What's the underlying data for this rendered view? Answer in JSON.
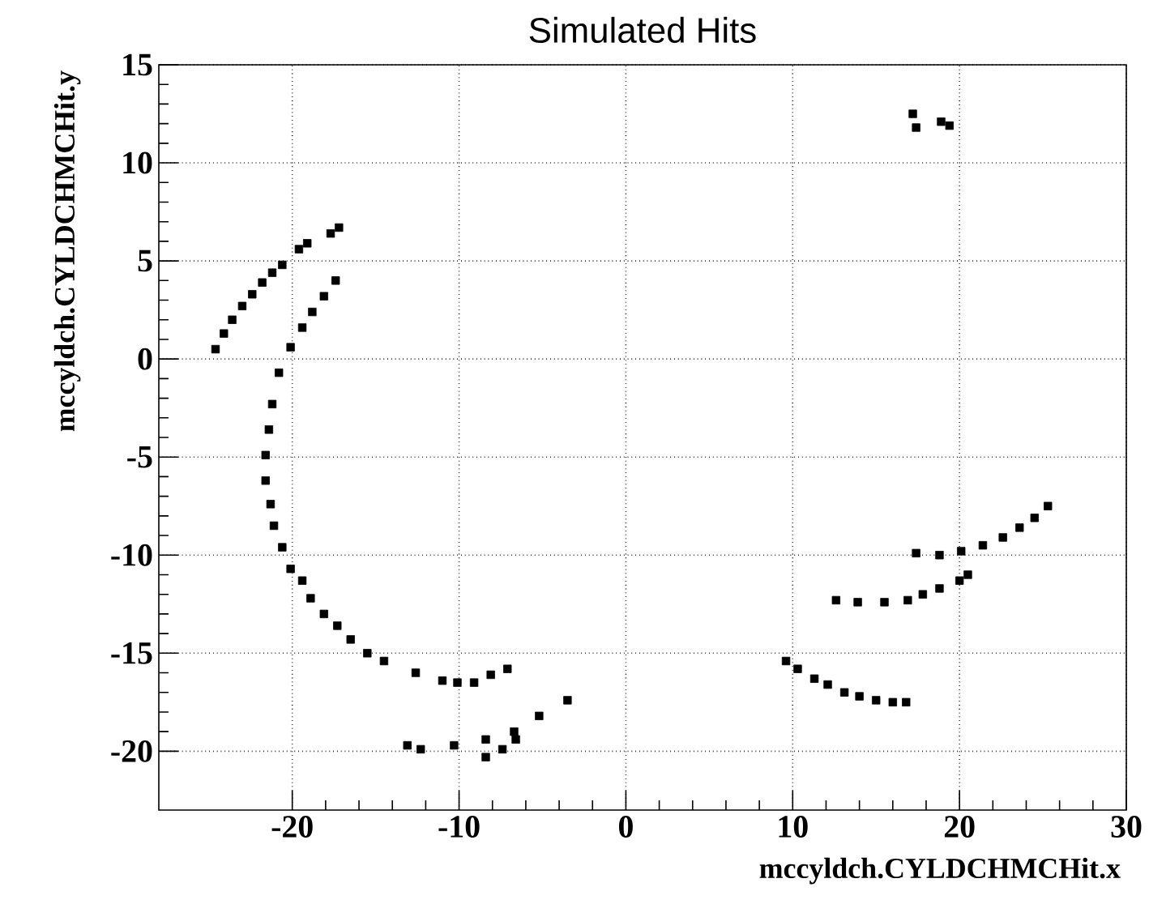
{
  "chart_data": {
    "type": "scatter",
    "title": "Simulated Hits",
    "xlabel": "mccyldch.CYLDCHMCHit.x",
    "ylabel": "mccyldch.CYLDCHMCHit.y",
    "xlim": [
      -28,
      30
    ],
    "ylim": [
      -23,
      15
    ],
    "xticks": [
      -20,
      -10,
      0,
      10,
      20,
      30
    ],
    "yticks": [
      -20,
      -15,
      -10,
      -5,
      0,
      5,
      10,
      15
    ],
    "grid": true,
    "marker": "square",
    "series": [
      {
        "color": "#000000",
        "x": [
          -24.6,
          -24.1,
          -23.6,
          -23.0,
          -22.4,
          -21.8,
          -21.2,
          -20.6,
          -19.6,
          -19.1,
          -17.7,
          -17.2,
          -17.4,
          -18.1,
          -18.8,
          -19.4,
          -20.1,
          -20.8,
          -21.2,
          -21.4,
          -21.6,
          -21.6,
          -21.3,
          -21.1,
          -20.6,
          -20.1,
          -19.4,
          -18.9,
          -18.1,
          -17.3,
          -16.5,
          -15.5,
          -14.5,
          -12.6,
          -11.0,
          -10.1,
          -9.1,
          -8.1,
          -7.1,
          -13.1,
          -12.3,
          -10.3,
          -8.4,
          -6.7,
          -5.2,
          -3.5,
          -8.4,
          -7.4,
          -6.6,
          9.6,
          10.3,
          11.3,
          12.1,
          13.1,
          14.0,
          15.0,
          16.0,
          16.8,
          12.6,
          13.9,
          15.5,
          16.9,
          17.8,
          18.8,
          20.0,
          20.5,
          17.4,
          18.8,
          20.1,
          21.4,
          22.6,
          23.6,
          24.5,
          25.3,
          17.2,
          17.4,
          18.9,
          19.4
        ],
        "values": [
          0.5,
          1.3,
          2.0,
          2.7,
          3.3,
          3.9,
          4.4,
          4.8,
          5.6,
          5.9,
          6.4,
          6.7,
          4.0,
          3.2,
          2.4,
          1.6,
          0.6,
          -0.7,
          -2.3,
          -3.6,
          -4.9,
          -6.2,
          -7.4,
          -8.5,
          -9.6,
          -10.7,
          -11.3,
          -12.2,
          -13.0,
          -13.6,
          -14.3,
          -15.0,
          -15.4,
          -16.0,
          -16.4,
          -16.5,
          -16.5,
          -16.1,
          -15.8,
          -19.7,
          -19.9,
          -19.7,
          -19.4,
          -19.0,
          -18.2,
          -17.4,
          -20.3,
          -19.9,
          -19.4,
          -15.4,
          -15.8,
          -16.3,
          -16.6,
          -17.0,
          -17.2,
          -17.4,
          -17.5,
          -17.5,
          -12.3,
          -12.4,
          -12.4,
          -12.3,
          -12.0,
          -11.7,
          -11.3,
          -11.0,
          -9.9,
          -10.0,
          -9.8,
          -9.5,
          -9.1,
          -8.6,
          -8.1,
          -7.5,
          12.5,
          11.8,
          12.1,
          11.9
        ]
      }
    ]
  }
}
